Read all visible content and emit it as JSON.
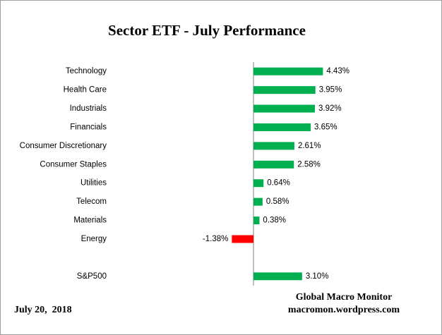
{
  "chart_data": {
    "type": "bar",
    "orientation": "horizontal",
    "title": "Sector ETF - July Performance",
    "categories": [
      "Technology",
      "Health Care",
      "Industrials",
      "Financials",
      "Consumer Discretionary",
      "Consumer Staples",
      "Utilities",
      "Telecom",
      "Materials",
      "Energy",
      null,
      "S&P500"
    ],
    "values": [
      4.43,
      3.95,
      3.92,
      3.65,
      2.61,
      2.58,
      0.64,
      0.58,
      0.38,
      -1.38,
      null,
      3.1
    ],
    "value_labels": [
      "4.43%",
      "3.95%",
      "3.92%",
      "3.65%",
      "2.61%",
      "2.58%",
      "0.64%",
      "0.58%",
      "0.38%",
      "-1.38%",
      null,
      "3.10%"
    ],
    "positive_color": "#00b050",
    "negative_color": "#ff0000",
    "source": "Global Macro Monitor",
    "website": "macromon.wordpress.com",
    "date": "July 20,  2018"
  }
}
